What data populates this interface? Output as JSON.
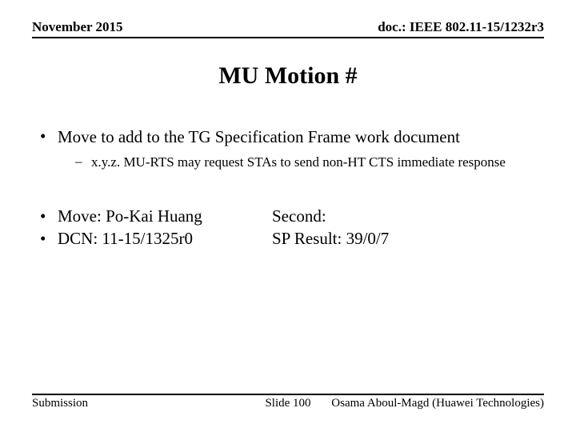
{
  "header": {
    "left": "November 2015",
    "right": "doc.: IEEE 802.11-15/1232r3"
  },
  "title": "MU Motion #",
  "bullets": {
    "main": "Move to add to the TG Specification Frame work document",
    "sub": "x.y.z. MU-RTS may request STAs to send non-HT CTS immediate response"
  },
  "cols": {
    "move": "Move: Po-Kai Huang",
    "dcn": "DCN: 11-15/1325r0",
    "second": "Second:",
    "result": "SP Result: 39/0/7"
  },
  "footer": {
    "left": "Submission",
    "center": "Slide 100",
    "right": "Osama Aboul-Magd (Huawei Technologies)"
  }
}
